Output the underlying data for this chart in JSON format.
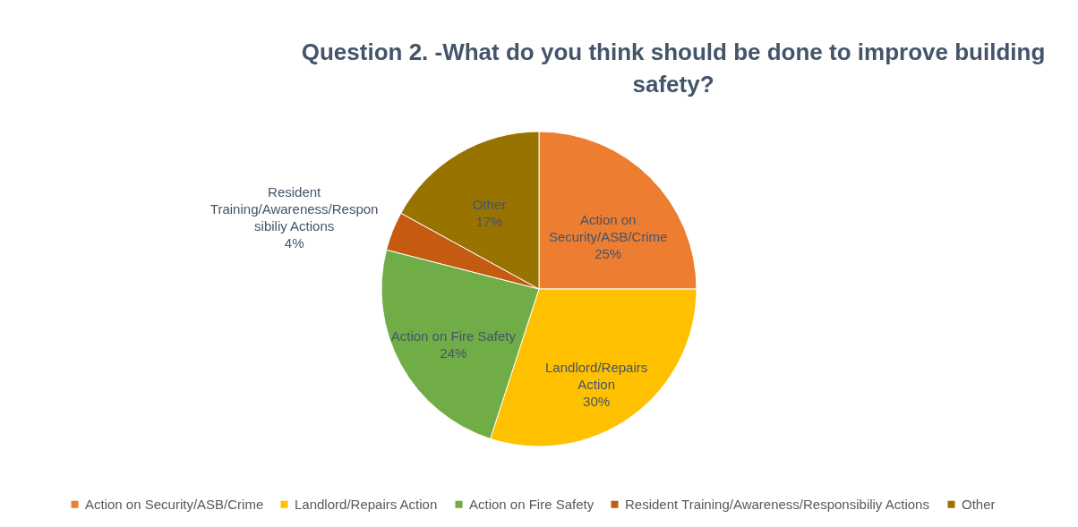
{
  "chart_data": {
    "type": "pie",
    "title": "Question 2. -What do you think should be done to improve building safety?",
    "categories": [
      "Action on Security/ASB/Crime",
      "Landlord/Repairs Action",
      "Action on Fire Safety",
      "Resident Training/Awareness/Responsibiliy Actions",
      "Other"
    ],
    "values": [
      25,
      30,
      24,
      4,
      17
    ],
    "value_labels": [
      "25%",
      "30%",
      "24%",
      "4%",
      "17%"
    ],
    "colors": [
      "#ed7d31",
      "#ffc000",
      "#70ad47",
      "#c55a11",
      "#997300"
    ],
    "legend": "bottom"
  }
}
